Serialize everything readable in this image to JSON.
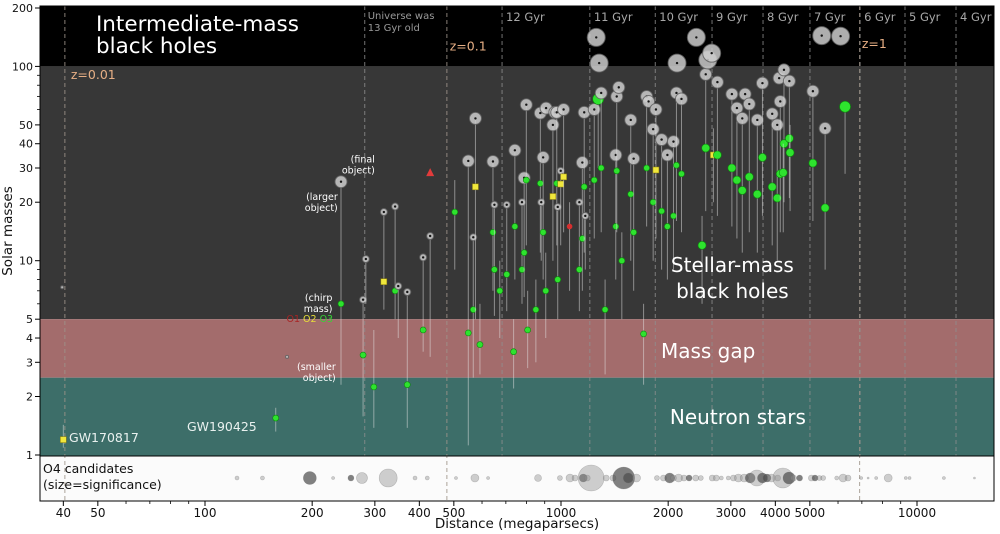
{
  "chart_data": {
    "type": "scatter",
    "title": "Intermediate-mass black holes",
    "xlabel": "Distance (megaparsecs)",
    "ylabel": "Solar masses",
    "xscale": "log",
    "yscale": "log",
    "xlim": [
      35,
      16500
    ],
    "ylim": [
      1,
      207
    ],
    "x_ticks": [
      40,
      50,
      100,
      200,
      300,
      400,
      500,
      1000,
      2000,
      3000,
      4000,
      5000,
      10000
    ],
    "x_minor_ticks": [
      60,
      70,
      80,
      90,
      600,
      700,
      800,
      900,
      6000,
      7000,
      8000,
      9000
    ],
    "y_ticks": [
      1,
      2,
      3,
      4,
      5,
      10,
      20,
      30,
      40,
      50,
      100,
      200
    ],
    "y_minor_ticks": [
      6,
      7,
      8,
      9,
      60,
      70,
      80,
      90
    ],
    "grid": "dashed-vertical-epoch-lines",
    "legend_position": "annotation-inline",
    "bands": [
      {
        "name": "intermediate-mass-black-holes",
        "m_min": 100,
        "m_max": 207,
        "color": "#000000"
      },
      {
        "name": "stellar-mass-black-holes",
        "m_min": 5,
        "m_max": 100,
        "color": "#373737"
      },
      {
        "name": "mass-gap",
        "m_min": 2.5,
        "m_max": 5,
        "color": "#a36c6c"
      },
      {
        "name": "neutron-stars",
        "m_min": 1,
        "m_max": 2.5,
        "color": "#3d6e69"
      }
    ],
    "redshift_lines": [
      {
        "label": "z=0.01",
        "d": 40.4,
        "label_d": 42,
        "label_m": 86
      },
      {
        "label": "z=0.1",
        "d": 478,
        "label_d": 487,
        "label_m": 121
      },
      {
        "label": "z=1",
        "d": 6900,
        "label_d": 7000,
        "label_m": 124
      }
    ],
    "universe_line": {
      "d": 281,
      "lines": [
        "Universe was",
        "13 Gyr old"
      ]
    },
    "age_lines": [
      {
        "label": "12 Gyr",
        "d": 683
      },
      {
        "label": "11 Gyr",
        "d": 1205
      },
      {
        "label": "10 Gyr",
        "d": 1840
      },
      {
        "label": "9 Gyr",
        "d": 2656
      },
      {
        "label": "8 Gyr",
        "d": 3694
      },
      {
        "label": "7 Gyr",
        "d": 5004
      },
      {
        "label": "6 Gyr",
        "d": 6920
      },
      {
        "label": "5 Gyr",
        "d": 9253
      },
      {
        "label": "4 Gyr",
        "d": 12870
      }
    ],
    "labels": [
      {
        "name": "title",
        "lines": [
          "Intermediate-mass",
          "black holes"
        ],
        "d": 49.4,
        "m": 152,
        "size": 21.5,
        "color": "#ffffff",
        "anchor": "start",
        "lh": 22
      },
      {
        "name": "stellar-mass-label",
        "lines": [
          "Stellar-mass",
          "black holes"
        ],
        "d": 3030,
        "m": 8.75,
        "size": 20,
        "color": "#ffffff",
        "anchor": "middle",
        "lh": 26
      },
      {
        "name": "mass-gap-label",
        "lines": [
          "Mass gap"
        ],
        "d": 2590,
        "m": 3.16,
        "size": 20,
        "color": "#ffffff",
        "anchor": "middle",
        "lh": 22
      },
      {
        "name": "neutron-stars-label",
        "lines": [
          "Neutron stars"
        ],
        "d": 3140,
        "m": 1.44,
        "size": 20,
        "color": "#ffffff",
        "anchor": "middle",
        "lh": 22
      },
      {
        "name": "gw170817-label",
        "lines": [
          "GW170817"
        ],
        "d": 41.5,
        "m": 1.167,
        "size": 12.5,
        "color": "#e9f1ef",
        "anchor": "start",
        "lh": 13
      },
      {
        "name": "gw190425-label",
        "lines": [
          "GW190425"
        ],
        "d": 89,
        "m": 1.33,
        "size": 12.5,
        "color": "#e9f1ef",
        "anchor": "start",
        "lh": 13
      },
      {
        "name": "final-object-note",
        "lines": [
          "(final",
          "object)"
        ],
        "d": 300,
        "m": 32,
        "size": 9.5,
        "color": "#ffffff",
        "anchor": "end",
        "lh": 11
      },
      {
        "name": "larger-object-note",
        "lines": [
          "(larger",
          "object)"
        ],
        "d": 236,
        "m": 20.5,
        "size": 9.5,
        "color": "#ffffff",
        "anchor": "end",
        "lh": 11
      },
      {
        "name": "chirp-mass-note",
        "lines": [
          "(chirp",
          "mass)"
        ],
        "d": 228,
        "m": 6.2,
        "size": 9.5,
        "color": "#ffffff",
        "anchor": "end",
        "lh": 11
      },
      {
        "name": "smaller-object-note",
        "lines": [
          "(smaller",
          "object)"
        ],
        "d": 233,
        "m": 2.74,
        "size": 9.5,
        "color": "#ffffff",
        "anchor": "end",
        "lh": 11
      }
    ],
    "legend_runs": {
      "d": 229,
      "m": 4.84,
      "items": [
        {
          "label": "O1",
          "color": "#a82525"
        },
        {
          "label": "O2",
          "color": "#e8df39"
        },
        {
          "label": "O3",
          "color": "#35d435"
        }
      ]
    },
    "marker_colors": {
      "O1": "#d62f2f",
      "O2": "#f0e73c",
      "O3": "#2ee32e",
      "larger_object": "#c9c9c9",
      "final_object": "#e23b3b"
    },
    "events": [
      {
        "d": 40,
        "t": 1.43,
        "mc": 1.2,
        "m2": 1.09,
        "run": "O2"
      },
      {
        "d": 39.7,
        "m1": 7.3,
        "s": 0
      },
      {
        "d": 170,
        "m1": 3.2,
        "s": 0
      },
      {
        "d": 158,
        "t": 1.75,
        "mc": 1.55,
        "m2": 1.32,
        "run": "O3"
      },
      {
        "d": 241,
        "m1": 25.5,
        "mc": 6,
        "m2": 2.3,
        "run": "O3",
        "s": 2
      },
      {
        "d": 278,
        "m1": 6.3,
        "mc": 3.27,
        "m2": 1.58,
        "run": "O3",
        "s": 1
      },
      {
        "d": 298,
        "t": 4.4,
        "mc": 2.24,
        "m2": 1.38,
        "run": "O3"
      },
      {
        "d": 283,
        "m1": 10.2,
        "m2": 6,
        "s": 1
      },
      {
        "d": 318,
        "m1": 17.8,
        "mc": 7.8,
        "m2": 5.6,
        "run": "O2",
        "s": 1
      },
      {
        "d": 342,
        "m1": 19,
        "mc": 7,
        "m2": 5,
        "run": "O3",
        "s": 1
      },
      {
        "d": 349,
        "m1": 7.4,
        "m2": 4,
        "s": 1
      },
      {
        "d": 370,
        "m1": 6.9,
        "mc": 2.3,
        "m2": 1.38,
        "run": "O3",
        "s": 1
      },
      {
        "d": 410,
        "m1": 10.4,
        "mc": 4.4,
        "m2": 3.4,
        "run": "O3",
        "s": 1
      },
      {
        "d": 429,
        "mf": 28.4,
        "m1": 13.4,
        "m2": 3.2,
        "s": 1
      },
      {
        "d": 503,
        "t": 26,
        "mc": 17.8,
        "m2": 9,
        "run": "O3"
      },
      {
        "d": 549,
        "m1": 32.6,
        "mc": 4.25,
        "m2": 1.12,
        "run": "O3",
        "s": 2
      },
      {
        "d": 567,
        "m1": 13.2,
        "mc": 5.6,
        "m2": 2.5,
        "run": "O3",
        "s": 1
      },
      {
        "d": 575,
        "m1": 54,
        "mc": 24,
        "m2": 5,
        "run": "O2",
        "s": 2
      },
      {
        "d": 592,
        "t": 6,
        "mc": 3.7,
        "m2": 2.6,
        "run": "O3"
      },
      {
        "d": 644,
        "m1": 32.4,
        "mc": 14,
        "m2": 7,
        "run": "O3",
        "s": 2
      },
      {
        "d": 650,
        "m1": 19.4,
        "mc": 9,
        "m2": 5.2,
        "run": "O3",
        "s": 1
      },
      {
        "d": 673,
        "t": 10,
        "mc": 7,
        "m2": 4,
        "run": "O3"
      },
      {
        "d": 704,
        "m1": 19.4,
        "mc": 8.5,
        "m2": 5.5,
        "run": "O3",
        "s": 1
      },
      {
        "d": 736,
        "t": 5,
        "mc": 3.4,
        "m2": 2.2,
        "run": "O3"
      },
      {
        "d": 742,
        "m1": 37,
        "mc": 15,
        "m2": 8,
        "run": "O3",
        "s": 2
      },
      {
        "d": 777,
        "m1": 20,
        "mc": 9,
        "m2": 6,
        "run": "O3",
        "s": 1
      },
      {
        "d": 788,
        "m1": 26.7,
        "mc": 11,
        "m2": 6.5,
        "run": "O3",
        "s": 2
      },
      {
        "d": 799,
        "m1": 63.5,
        "mc": 26,
        "m2": 12,
        "run": "O3",
        "s": 2
      },
      {
        "d": 806,
        "t": 7,
        "mc": 4.4,
        "m2": 2.8,
        "run": "O3"
      },
      {
        "d": 850,
        "t": 8,
        "mc": 5.6,
        "m2": 3,
        "run": "O3"
      },
      {
        "d": 875,
        "m1": 57.5,
        "mc": 25,
        "m2": 11,
        "run": "O3",
        "s": 2
      },
      {
        "d": 880,
        "m1": 20,
        "m2": 10,
        "s": 1
      },
      {
        "d": 891,
        "m1": 34,
        "mc": 14,
        "m2": 8,
        "run": "O3",
        "s": 2
      },
      {
        "d": 906,
        "t": 11,
        "mc": 7,
        "m2": 4,
        "run": "O3"
      },
      {
        "d": 908,
        "m1": 61,
        "s": 2
      },
      {
        "d": 949,
        "m1": 50,
        "mc": 21.4,
        "m2": 10,
        "run": "O2",
        "s": 2
      },
      {
        "d": 961,
        "m1": 58,
        "s": 2
      },
      {
        "d": 973,
        "m1": 58,
        "mc": 25,
        "m2": 12,
        "run": "O3",
        "s": 2
      },
      {
        "d": 979,
        "m1": 18.9,
        "mc": 8,
        "m2": 5,
        "run": "O3",
        "s": 1
      },
      {
        "d": 998,
        "m1": 29,
        "mc": 24.8,
        "m2": 12,
        "run": "O2",
        "s": 1
      },
      {
        "d": 1017,
        "m1": 60,
        "mc": 27,
        "m2": 14,
        "run": "O2",
        "s": 2
      },
      {
        "d": 1057,
        "t": 20,
        "mc": 15,
        "m2": 7,
        "run": "O1"
      },
      {
        "d": 1126,
        "m1": 20,
        "mc": 9,
        "m2": 5.5,
        "run": "O3",
        "s": 1
      },
      {
        "d": 1148,
        "m1": 32,
        "mc": 13,
        "m2": 7,
        "run": "O3",
        "s": 2
      },
      {
        "d": 1162,
        "m1": 58,
        "mc": 24,
        "m2": 11,
        "run": "O3",
        "s": 2
      },
      {
        "d": 1170,
        "m1": 17,
        "m2": 9,
        "s": 1
      },
      {
        "d": 1240,
        "m1": 60,
        "mc": 26,
        "m2": 13,
        "run": "O3",
        "s": 2
      },
      {
        "d": 1256,
        "m1": 141,
        "s": 3
      },
      {
        "d": 1272,
        "t": 68,
        "mc": 68,
        "m2": 30,
        "run": "O3",
        "ms": 5.5
      },
      {
        "d": 1280,
        "m1": 104,
        "s": 3
      },
      {
        "d": 1297,
        "m1": 73,
        "mc": 30,
        "m2": 14,
        "run": "O3",
        "s": 2
      },
      {
        "d": 1330,
        "t": 8,
        "mc": 5.6,
        "m2": 2.6,
        "run": "O3"
      },
      {
        "d": 1425,
        "m1": 35,
        "mc": 15,
        "m2": 8,
        "run": "O3",
        "s": 2
      },
      {
        "d": 1434,
        "m1": 70,
        "mc": 29,
        "m2": 14,
        "run": "O3",
        "s": 2
      },
      {
        "d": 1453,
        "m1": 78,
        "s": 2
      },
      {
        "d": 1482,
        "t": 14,
        "mc": 10,
        "m2": 5,
        "run": "O3"
      },
      {
        "d": 1570,
        "m1": 53,
        "mc": 22,
        "m2": 10,
        "run": "O3",
        "s": 2
      },
      {
        "d": 1600,
        "m1": 33.5,
        "mc": 14,
        "m2": 7,
        "run": "O3",
        "s": 2
      },
      {
        "d": 1706,
        "t": 6,
        "mc": 4.2,
        "m2": 2.3,
        "run": "O3"
      },
      {
        "d": 1740,
        "m1": 70,
        "mc": 30,
        "m2": 15,
        "run": "O3",
        "s": 2
      },
      {
        "d": 1762,
        "m1": 66,
        "s": 2
      },
      {
        "d": 1815,
        "m1": 47.5,
        "mc": 20,
        "m2": 10,
        "run": "O3",
        "s": 2
      },
      {
        "d": 1848,
        "m1": 60,
        "mc": 29.3,
        "m2": 13,
        "run": "O2",
        "s": 2
      },
      {
        "d": 1917,
        "m1": 42,
        "mc": 18,
        "m2": 9,
        "run": "O3",
        "s": 2
      },
      {
        "d": 1990,
        "m1": 35,
        "mc": 15,
        "m2": 8,
        "run": "O3",
        "s": 2
      },
      {
        "d": 2070,
        "m1": 41,
        "mc": 17,
        "m2": 9,
        "run": "O3",
        "s": 2
      },
      {
        "d": 2110,
        "m1": 73,
        "mc": 31,
        "m2": 16,
        "run": "O3",
        "s": 2
      },
      {
        "d": 2118,
        "m1": 104,
        "s": 3
      },
      {
        "d": 2180,
        "m1": 68,
        "mc": 28,
        "m2": 14,
        "run": "O3",
        "s": 2
      },
      {
        "d": 2400,
        "m1": 141,
        "s": 3
      },
      {
        "d": 2490,
        "t": 17,
        "mc": 12,
        "m2": 6,
        "run": "O3"
      },
      {
        "d": 2550,
        "m1": 91,
        "mc": 38,
        "m2": 18,
        "run": "O3",
        "s": 2
      },
      {
        "d": 2585,
        "m1": 108,
        "s": 3
      },
      {
        "d": 2650,
        "m1": 117,
        "s": 3
      },
      {
        "d": 2680,
        "t": 48,
        "mc": 35,
        "m2": 20,
        "run": "O2"
      },
      {
        "d": 2750,
        "m1": 83,
        "mc": 35,
        "m2": 17,
        "run": "O3",
        "s": 2
      },
      {
        "d": 3020,
        "m1": 72,
        "mc": 30,
        "m2": 15,
        "run": "O3",
        "s": 2
      },
      {
        "d": 3120,
        "m1": 61,
        "mc": 26,
        "m2": 13,
        "run": "O3",
        "s": 2
      },
      {
        "d": 3230,
        "m1": 54,
        "mc": 23,
        "m2": 11,
        "run": "O3",
        "s": 2
      },
      {
        "d": 3290,
        "m1": 72,
        "s": 2
      },
      {
        "d": 3380,
        "m1": 64,
        "mc": 27,
        "m2": 14,
        "run": "O3",
        "s": 2
      },
      {
        "d": 3560,
        "m1": 53,
        "mc": 22,
        "m2": 11,
        "run": "O3",
        "s": 2
      },
      {
        "d": 3680,
        "m1": 82,
        "mc": 34,
        "m2": 17,
        "run": "O3",
        "s": 2
      },
      {
        "d": 3920,
        "m1": 57,
        "mc": 24,
        "m2": 12,
        "run": "O3",
        "s": 2
      },
      {
        "d": 4050,
        "m1": 50,
        "mc": 21,
        "m2": 10,
        "run": "O3",
        "s": 2
      },
      {
        "d": 4100,
        "m1": 87,
        "s": 2
      },
      {
        "d": 4130,
        "m1": 66,
        "mc": 28,
        "m2": 14,
        "run": "O3",
        "s": 2
      },
      {
        "d": 4230,
        "m1": 96,
        "mc": 40,
        "m2": 20,
        "run": "O3",
        "s": 2
      },
      {
        "d": 4380,
        "m1": 84,
        "mc": 42.6,
        "m2": 21,
        "run": "O3",
        "s": 2
      },
      {
        "d": 4400,
        "t": 50,
        "mc": 36,
        "m2": 18,
        "run": "O3"
      },
      {
        "d": 4210,
        "t": 40,
        "mc": 28.4,
        "m2": 14,
        "run": "O3"
      },
      {
        "d": 5100,
        "m1": 74.5,
        "mc": 31.8,
        "m2": 16,
        "run": "O3",
        "s": 2
      },
      {
        "d": 5400,
        "m1": 144,
        "s": 3
      },
      {
        "d": 5520,
        "m1": 48,
        "mc": 18.7,
        "m2": 9,
        "run": "O3",
        "s": 2
      },
      {
        "d": 6100,
        "m1": 143,
        "s": 3
      },
      {
        "d": 6280,
        "t": 62,
        "mc": 62,
        "m2": 28,
        "run": "O3",
        "ms": 5.5
      }
    ],
    "o4_strip": {
      "label_lines": [
        "O4 candidates",
        "(size=significance)"
      ],
      "bubble_color_light": "rgba(140,140,140,0.42)",
      "bubble_color_dark": "rgba(75,75,75,0.7)",
      "bubbles": [
        [
          123,
          2
        ],
        [
          145,
          2
        ],
        [
          197,
          6.5,
          1
        ],
        [
          229,
          1.5
        ],
        [
          257,
          3,
          1
        ],
        [
          276,
          5.5
        ],
        [
          327,
          9
        ],
        [
          389,
          2
        ],
        [
          421,
          2
        ],
        [
          507,
          1.5
        ],
        [
          573,
          4
        ],
        [
          624,
          1.5
        ],
        [
          862,
          3.5
        ],
        [
          993,
          2.5
        ],
        [
          1060,
          4
        ],
        [
          1095,
          3
        ],
        [
          1155,
          4,
          1
        ],
        [
          1185,
          3
        ],
        [
          1215,
          13
        ],
        [
          1340,
          3
        ],
        [
          1400,
          3
        ],
        [
          1500,
          11,
          1
        ],
        [
          1545,
          5,
          1
        ],
        [
          1630,
          4
        ],
        [
          1860,
          2.5
        ],
        [
          1940,
          3
        ],
        [
          2020,
          5,
          1
        ],
        [
          2070,
          3
        ],
        [
          2140,
          4
        ],
        [
          2215,
          3
        ],
        [
          2290,
          3,
          1
        ],
        [
          2390,
          3
        ],
        [
          2470,
          2.5
        ],
        [
          2660,
          3
        ],
        [
          2730,
          3
        ],
        [
          2820,
          2
        ],
        [
          2950,
          2
        ],
        [
          3050,
          3
        ],
        [
          3150,
          4
        ],
        [
          3270,
          4
        ],
        [
          3400,
          5,
          1
        ],
        [
          3550,
          8
        ],
        [
          3680,
          5,
          1
        ],
        [
          3790,
          4,
          1
        ],
        [
          3900,
          4
        ],
        [
          4060,
          3
        ],
        [
          4200,
          10
        ],
        [
          4370,
          6,
          1
        ],
        [
          4500,
          3
        ],
        [
          4680,
          3,
          1
        ],
        [
          5050,
          3
        ],
        [
          5170,
          3,
          1
        ],
        [
          5320,
          2.5
        ],
        [
          5450,
          2.5
        ],
        [
          5950,
          2
        ],
        [
          6200,
          4
        ],
        [
          6400,
          3
        ],
        [
          6970,
          1.5
        ],
        [
          7290,
          1
        ],
        [
          7680,
          1.5
        ],
        [
          8300,
          4
        ],
        [
          9300,
          1.5
        ],
        [
          9530,
          1.5
        ],
        [
          11900,
          1.5
        ],
        [
          14500,
          1
        ]
      ]
    }
  }
}
